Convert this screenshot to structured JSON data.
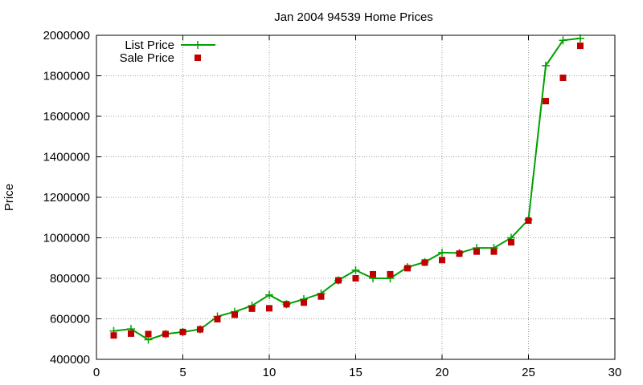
{
  "chart_data": {
    "type": "line",
    "title": "Jan 2004 94539 Home Prices",
    "xlabel": "",
    "ylabel": "Price",
    "xlim": [
      0,
      30
    ],
    "ylim": [
      400000,
      2000000
    ],
    "xticks": [
      0,
      5,
      10,
      15,
      20,
      25,
      30
    ],
    "yticks": [
      400000,
      600000,
      800000,
      1000000,
      1200000,
      1400000,
      1600000,
      1800000,
      2000000
    ],
    "grid": true,
    "legend_position": "top-left",
    "series": [
      {
        "name": "List Price",
        "style": "line-plus",
        "color": "#00a000",
        "x": [
          1,
          2,
          3,
          4,
          5,
          6,
          7,
          8,
          9,
          10,
          11,
          12,
          13,
          14,
          15,
          16,
          17,
          18,
          19,
          20,
          21,
          22,
          23,
          24,
          25,
          26,
          27,
          28
        ],
        "y": [
          540000,
          550000,
          497000,
          525000,
          535000,
          548000,
          612000,
          635000,
          665000,
          718000,
          672000,
          697000,
          725000,
          790000,
          840000,
          800000,
          800000,
          855000,
          880000,
          927000,
          925000,
          950000,
          950000,
          1000000,
          1090000,
          1850000,
          1975000,
          1985000
        ]
      },
      {
        "name": "Sale Price",
        "style": "square",
        "color": "#c00000",
        "x": [
          1,
          2,
          3,
          4,
          5,
          6,
          7,
          8,
          9,
          10,
          11,
          12,
          13,
          14,
          15,
          16,
          17,
          18,
          19,
          20,
          21,
          22,
          23,
          24,
          25,
          26,
          27,
          28
        ],
        "y": [
          518000,
          527000,
          525000,
          525000,
          535000,
          548000,
          598000,
          620000,
          650000,
          652000,
          672000,
          680000,
          710000,
          790000,
          800000,
          820000,
          820000,
          850000,
          878000,
          890000,
          922000,
          932000,
          932000,
          978000,
          1085000,
          1675000,
          1790000,
          1948000
        ]
      }
    ]
  }
}
